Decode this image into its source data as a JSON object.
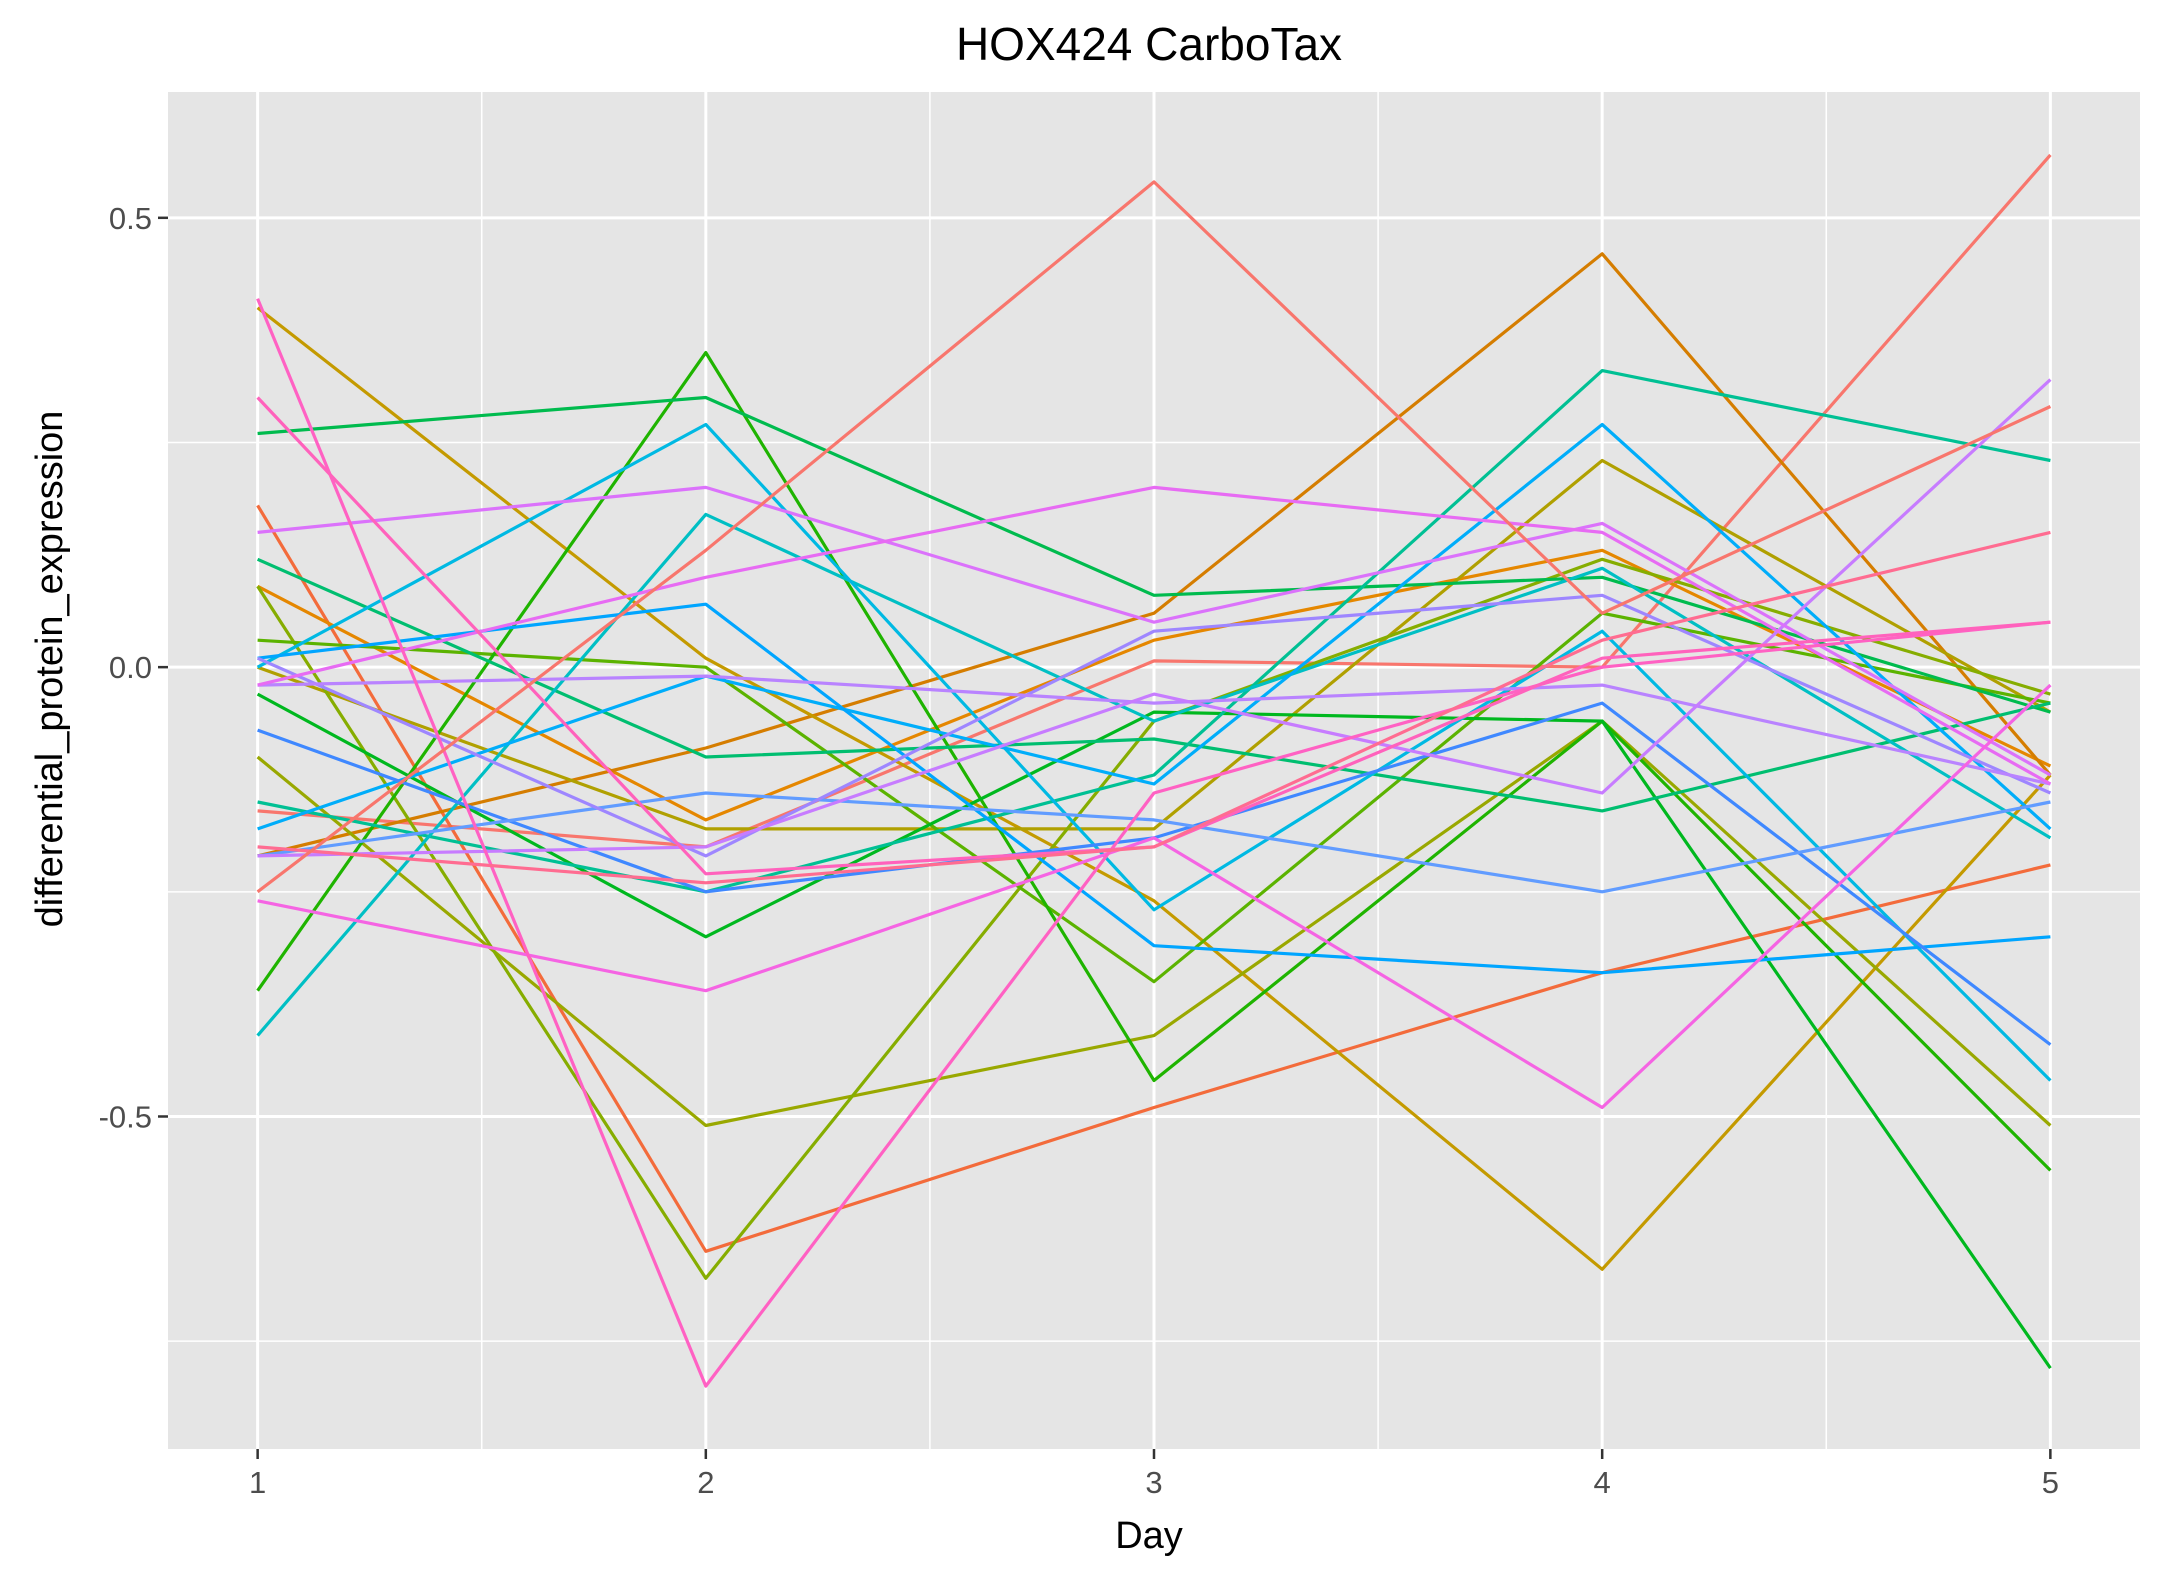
{
  "chart_data": {
    "type": "line",
    "title": "HOX424 CarboTax",
    "xlabel": "Day",
    "ylabel": "differential_protein_expression",
    "x": [
      1,
      2,
      3,
      4,
      5
    ],
    "xlim": [
      0.8,
      5.2
    ],
    "ylim": [
      -0.87,
      0.64
    ],
    "x_ticks": [
      1,
      2,
      3,
      4,
      5
    ],
    "y_ticks": [
      {
        "value": 0.5,
        "label": "0.5"
      },
      {
        "value": 0.0,
        "label": "0.0"
      },
      {
        "value": -0.5,
        "label": "-0.5"
      }
    ],
    "grid": true,
    "legend": "none",
    "panel_background": "#e5e5e5",
    "series": [
      {
        "color": "#f8766d",
        "values": [
          -0.16,
          -0.2,
          0.007,
          0.0,
          0.57
        ]
      },
      {
        "color": "#f36b3b",
        "values": [
          0.18,
          -0.65,
          -0.49,
          -0.34,
          -0.22
        ]
      },
      {
        "color": "#e58700",
        "values": [
          0.09,
          -0.17,
          0.03,
          0.13,
          -0.11
        ]
      },
      {
        "color": "#d57d00",
        "values": [
          -0.21,
          -0.09,
          0.06,
          0.46,
          -0.12
        ]
      },
      {
        "color": "#c49a00",
        "values": [
          0.4,
          0.01,
          -0.26,
          -0.67,
          -0.12
        ]
      },
      {
        "color": "#b0a000",
        "values": [
          0.0,
          -0.18,
          -0.18,
          0.23,
          -0.05
        ]
      },
      {
        "color": "#99a800",
        "values": [
          -0.1,
          -0.51,
          -0.41,
          -0.06,
          -0.51
        ]
      },
      {
        "color": "#86ad00",
        "values": [
          0.09,
          -0.68,
          -0.06,
          0.12,
          -0.03
        ]
      },
      {
        "color": "#5bb300",
        "values": [
          0.03,
          0.0,
          -0.35,
          0.06,
          -0.04
        ]
      },
      {
        "color": "#1fb400",
        "values": [
          -0.36,
          0.35,
          -0.46,
          -0.06,
          -0.56
        ]
      },
      {
        "color": "#00b81f",
        "values": [
          -0.03,
          -0.3,
          -0.05,
          -0.06,
          -0.78
        ]
      },
      {
        "color": "#00bb4e",
        "values": [
          0.26,
          0.3,
          0.08,
          0.1,
          -0.05
        ]
      },
      {
        "color": "#00be70",
        "values": [
          0.12,
          -0.1,
          -0.08,
          -0.16,
          -0.04
        ]
      },
      {
        "color": "#00c094",
        "values": [
          -0.15,
          -0.25,
          -0.12,
          0.33,
          0.23
        ]
      },
      {
        "color": "#00bfc4",
        "values": [
          -0.41,
          0.17,
          -0.06,
          0.11,
          -0.19
        ]
      },
      {
        "color": "#00b9e3",
        "values": [
          0.0,
          0.27,
          -0.27,
          0.04,
          -0.46
        ]
      },
      {
        "color": "#00adfa",
        "values": [
          -0.18,
          -0.01,
          -0.13,
          0.27,
          -0.18
        ]
      },
      {
        "color": "#00a5ff",
        "values": [
          0.01,
          0.07,
          -0.31,
          -0.34,
          -0.3
        ]
      },
      {
        "color": "#3f88ff",
        "values": [
          -0.07,
          -0.25,
          -0.19,
          -0.04,
          -0.42
        ]
      },
      {
        "color": "#619cff",
        "values": [
          -0.21,
          -0.14,
          -0.17,
          -0.25,
          -0.15
        ]
      },
      {
        "color": "#9e86ff",
        "values": [
          0.01,
          -0.21,
          0.04,
          0.08,
          -0.14
        ]
      },
      {
        "color": "#b983ff",
        "values": [
          -0.02,
          -0.01,
          -0.04,
          -0.02,
          -0.13
        ]
      },
      {
        "color": "#c77cff",
        "values": [
          -0.21,
          -0.2,
          -0.03,
          -0.14,
          0.32
        ]
      },
      {
        "color": "#db72fb",
        "values": [
          0.15,
          0.2,
          0.05,
          0.16,
          -0.12
        ]
      },
      {
        "color": "#e76bf3",
        "values": [
          -0.02,
          0.1,
          0.2,
          0.15,
          -0.13
        ]
      },
      {
        "color": "#f564e3",
        "values": [
          -0.26,
          -0.36,
          -0.19,
          -0.49,
          -0.02
        ]
      },
      {
        "color": "#ff61c3",
        "values": [
          0.41,
          -0.8,
          -0.14,
          0.0,
          0.05
        ]
      },
      {
        "color": "#ff62bc",
        "values": [
          0.3,
          -0.23,
          -0.2,
          0.01,
          0.05
        ]
      },
      {
        "color": "#ff6c91",
        "values": [
          -0.2,
          -0.24,
          -0.2,
          0.03,
          0.15
        ]
      },
      {
        "color": "#f8766d",
        "values": [
          -0.25,
          0.13,
          0.54,
          0.06,
          0.29
        ]
      }
    ]
  }
}
